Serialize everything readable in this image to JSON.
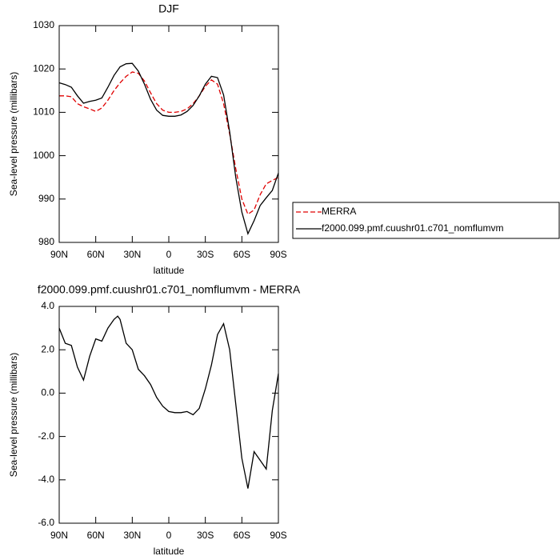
{
  "chart_data": [
    {
      "type": "line",
      "title": "DJF",
      "x_label": "latitude",
      "y_label": "Sea-level pressure (millibars)",
      "x": [
        90,
        85,
        80,
        75,
        70,
        65,
        60,
        55,
        50,
        45,
        40,
        35,
        30,
        25,
        20,
        15,
        10,
        5,
        0,
        -5,
        -10,
        -15,
        -20,
        -25,
        -30,
        -35,
        -40,
        -45,
        -50,
        -55,
        -60,
        -65,
        -70,
        -75,
        -80,
        -85,
        -90
      ],
      "series": [
        {
          "name": "MERRA",
          "color": "#e00000",
          "linestyle": "dashed",
          "values": [
            1013.8,
            1013.8,
            1013.6,
            1012,
            1011.3,
            1010.8,
            1010.2,
            1011,
            1012.8,
            1015,
            1016.8,
            1018.3,
            1019.3,
            1019,
            1017.2,
            1014.5,
            1012,
            1010.5,
            1010,
            1010,
            1010.2,
            1010.8,
            1012,
            1013.8,
            1016,
            1017.5,
            1016.5,
            1012,
            1005,
            997,
            990,
            986.5,
            987.5,
            991,
            993.5,
            994.3,
            995
          ]
        },
        {
          "name": "f2000.099.pmf.cuushr01.c701_nomflumvm",
          "color": "#000000",
          "linestyle": "solid",
          "values": [
            1016.8,
            1016.4,
            1015.8,
            1013.8,
            1012.1,
            1012.5,
            1012.8,
            1013.3,
            1015.8,
            1018.5,
            1020.5,
            1021.2,
            1021.3,
            1019.5,
            1016.5,
            1013,
            1010.5,
            1009.3,
            1009.1,
            1009.1,
            1009.4,
            1010.2,
            1011.6,
            1013.8,
            1016.5,
            1018.3,
            1018,
            1014,
            1005.5,
            995,
            987,
            982,
            985,
            988.5,
            990.3,
            992,
            996
          ]
        }
      ],
      "xlim": [
        90,
        -90
      ],
      "xticks": [
        {
          "value": 90,
          "label": "90N"
        },
        {
          "value": 60,
          "label": "60N"
        },
        {
          "value": 30,
          "label": "30N"
        },
        0,
        {
          "value": -30,
          "label": "30S"
        },
        {
          "value": -60,
          "label": "60S"
        },
        {
          "value": -90,
          "label": "90S"
        }
      ],
      "ylim": [
        980,
        1030
      ],
      "yticks": [
        980,
        990,
        1000,
        1010,
        1020,
        1030
      ],
      "legend": "right"
    },
    {
      "type": "line",
      "title": "f2000.099.pmf.cuushr01.c701_nomflumvm - MERRA",
      "x_label": "latitude",
      "y_label": "Sea-level pressure (millibars)",
      "x": [
        90,
        85,
        80,
        75,
        70,
        65,
        60,
        55,
        50,
        45,
        42,
        40,
        35,
        30,
        25,
        20,
        15,
        10,
        5,
        0,
        -5,
        -10,
        -15,
        -20,
        -25,
        -30,
        -35,
        -40,
        -45,
        -50,
        -55,
        -60,
        -65,
        -70,
        -75,
        -80,
        -85,
        -90
      ],
      "values": [
        3.0,
        2.3,
        2.2,
        1.2,
        0.6,
        1.7,
        2.5,
        2.4,
        3.0,
        3.4,
        3.55,
        3.4,
        2.3,
        2.0,
        1.1,
        0.8,
        0.4,
        -0.2,
        -0.6,
        -0.85,
        -0.9,
        -0.9,
        -0.85,
        -1.0,
        -0.7,
        0.2,
        1.3,
        2.7,
        3.2,
        2.0,
        -0.5,
        -3.0,
        -4.4,
        -2.7,
        -3.1,
        -3.5,
        -0.8,
        0.9
      ],
      "color": "#000000",
      "xlim": [
        90,
        -90
      ],
      "xticks": [
        {
          "value": 90,
          "label": "90N"
        },
        {
          "value": 60,
          "label": "60N"
        },
        {
          "value": 30,
          "label": "30N"
        },
        0,
        {
          "value": -30,
          "label": "30S"
        },
        {
          "value": -60,
          "label": "60S"
        },
        {
          "value": -90,
          "label": "90S"
        }
      ],
      "ylim": [
        -6,
        4
      ],
      "yticks": [
        {
          "value": -6,
          "label": "-6.0"
        },
        {
          "value": -4,
          "label": "-4.0"
        },
        {
          "value": -2,
          "label": "-2.0"
        },
        {
          "value": 0,
          "label": "0.0"
        },
        {
          "value": 2,
          "label": "2.0"
        },
        {
          "value": 4,
          "label": "4.0"
        }
      ]
    }
  ]
}
